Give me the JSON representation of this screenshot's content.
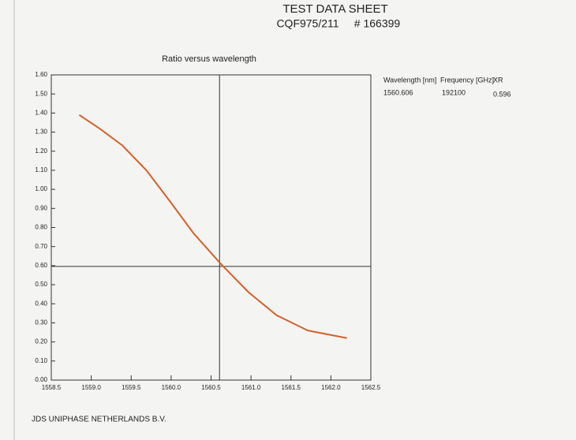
{
  "header": {
    "title": "TEST DATA SHEET",
    "part": "CQF975/211",
    "serial": "# 166399"
  },
  "table": {
    "headers": [
      "Wavelength [nm]",
      "Frequency [GHz]",
      "XR"
    ],
    "row": [
      1560.606,
      192100,
      0.596
    ]
  },
  "footer": "JDS UNIPHASE NETHERLANDS B.V.",
  "chart_data": {
    "type": "line",
    "title": "Ratio versus wavelength",
    "x": [
      1558.85,
      1559.1,
      1559.39,
      1559.69,
      1559.98,
      1560.28,
      1560.62,
      1560.97,
      1561.32,
      1561.71,
      1562.2
    ],
    "series": [
      {
        "color": "#d4602a",
        "values": [
          1.39,
          1.32,
          1.23,
          1.1,
          0.94,
          0.77,
          0.61,
          0.46,
          0.34,
          0.26,
          0.22
        ]
      }
    ],
    "xlim": [
      1558.5,
      1562.5
    ],
    "xticks": [
      1558.5,
      {
        "value": 1559,
        "label": "1559.0"
      },
      1559.5,
      {
        "value": 1560,
        "label": "1560.0"
      },
      1560.5,
      {
        "value": 1561,
        "label": "1561.0"
      },
      1561.5,
      {
        "value": 1562,
        "label": "1562.0"
      },
      1562.5
    ],
    "ylim": [
      0,
      1.6
    ],
    "yticks": [
      {
        "value": 0,
        "label": "0.00"
      },
      {
        "value": 0.1,
        "label": "0.10"
      },
      {
        "value": 0.2,
        "label": "0.20"
      },
      {
        "value": 0.3,
        "label": "0.30"
      },
      {
        "value": 0.4,
        "label": "0.40"
      },
      {
        "value": 0.5,
        "label": "0.50"
      },
      {
        "value": 0.6,
        "label": "0.60"
      },
      {
        "value": 0.7,
        "label": "0.70"
      },
      {
        "value": 0.8,
        "label": "0.80"
      },
      {
        "value": 0.9,
        "label": "0.90"
      },
      {
        "value": 1,
        "label": "1.00"
      },
      {
        "value": 1.1,
        "label": "1.10"
      },
      {
        "value": 1.2,
        "label": "1.20"
      },
      {
        "value": 1.3,
        "label": "1.30"
      },
      {
        "value": 1.4,
        "label": "1.40"
      },
      {
        "value": 1.5,
        "label": "1.50"
      },
      {
        "value": 1.6,
        "label": "1.60"
      }
    ]
  }
}
